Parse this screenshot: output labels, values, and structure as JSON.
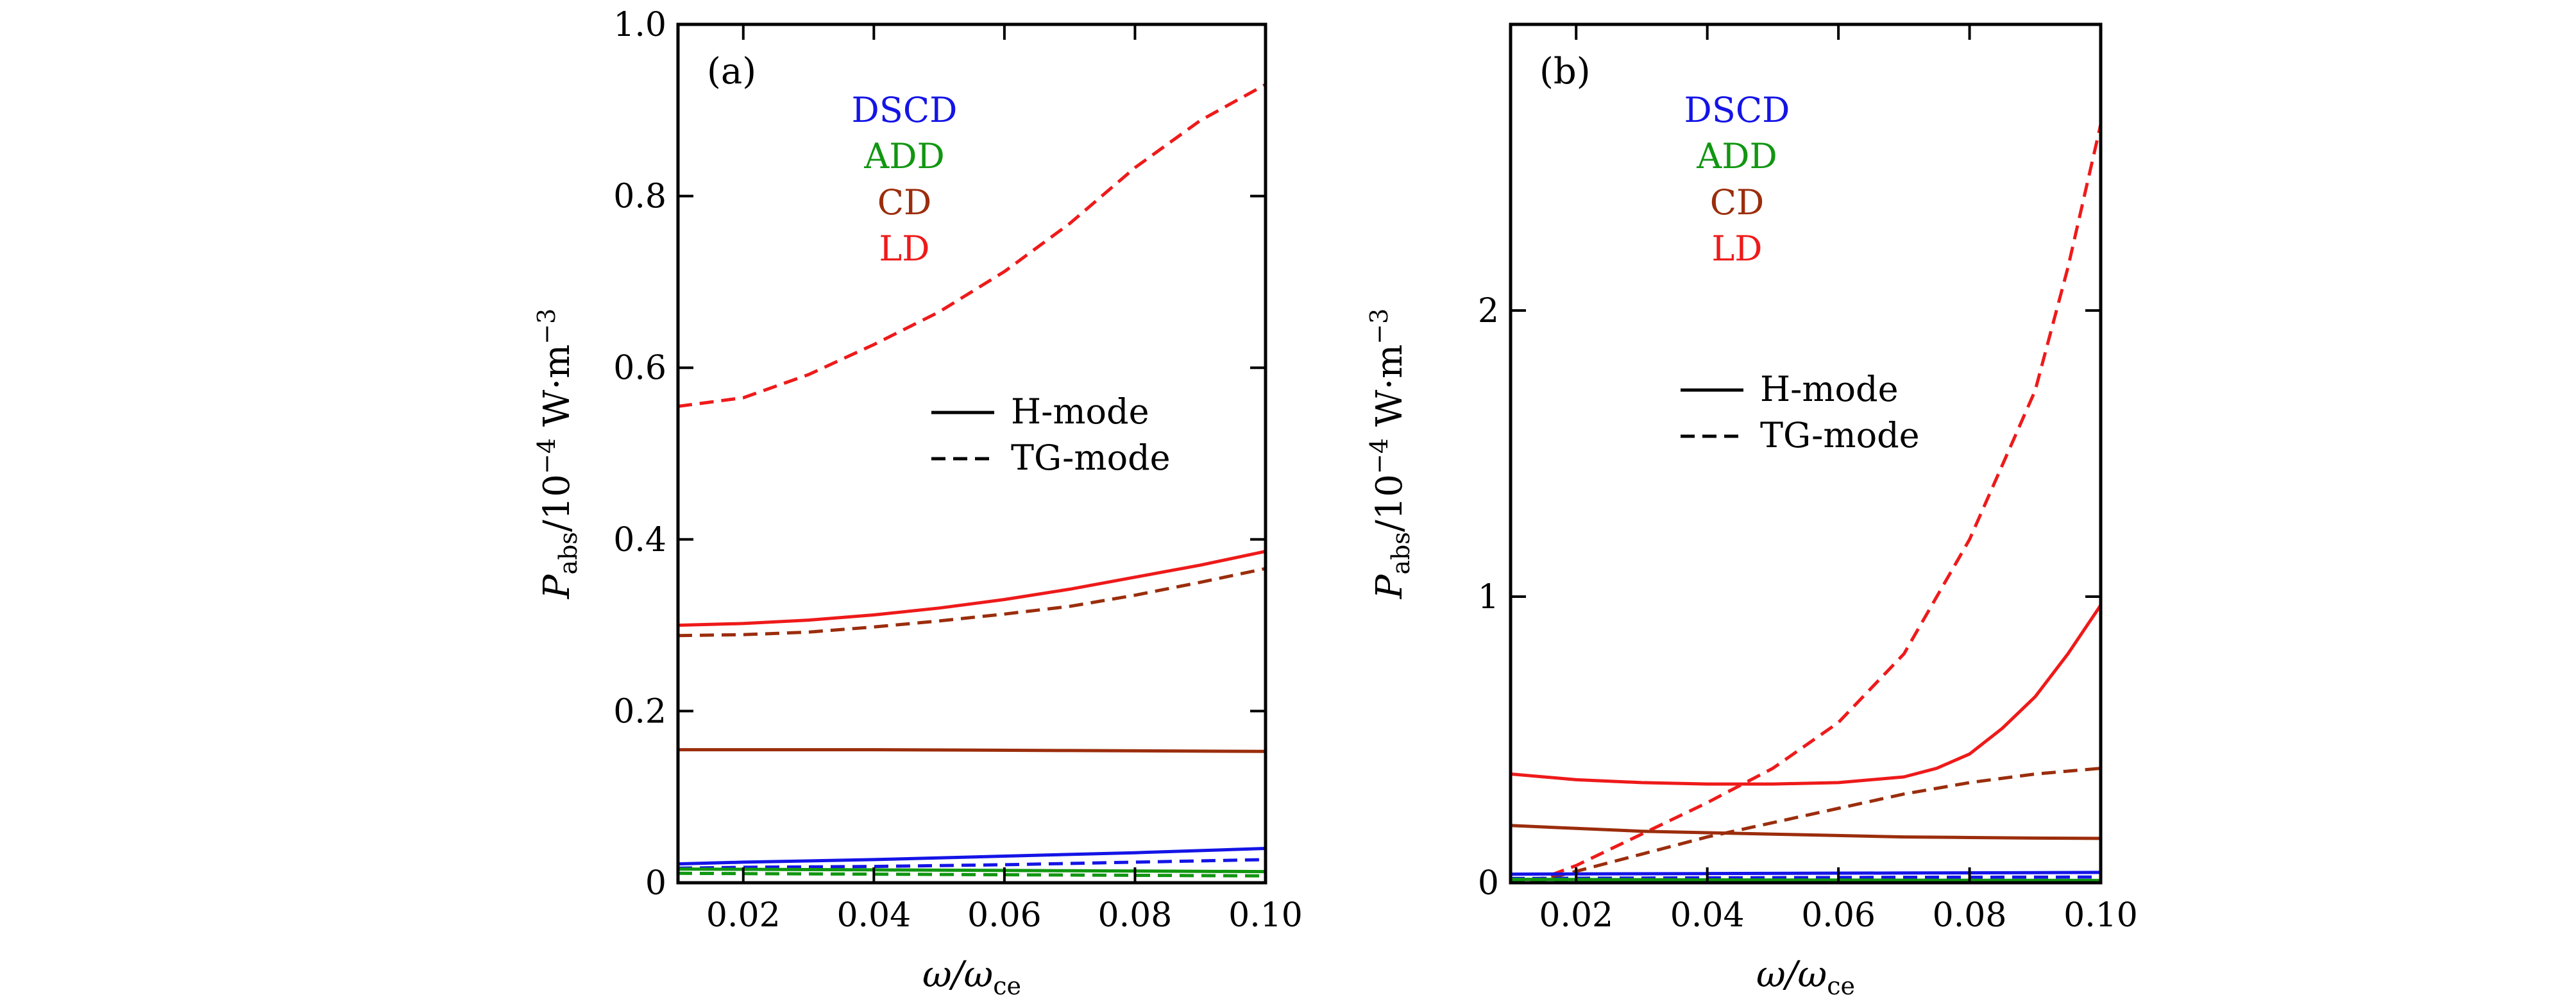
{
  "colors": {
    "DSCD": "#1414e6",
    "ADD": "#119611",
    "CD": "#9b2d0c",
    "LD": "#ee1a1a",
    "axis": "#000000"
  },
  "chart_data": [
    {
      "type": "line",
      "panel_label": "(a)",
      "xlabel": {
        "base": "ω/ω",
        "sub": "ce"
      },
      "ylabel": {
        "base": "P",
        "sub": "abs",
        "rest": "/10",
        "sup": "−4",
        "unit": " W·m",
        "unit_sup": "−3"
      },
      "xlim": [
        0.01,
        0.1
      ],
      "ylim": [
        0,
        1.0
      ],
      "xticks": [
        0.02,
        0.04,
        0.06,
        0.08,
        0.1
      ],
      "xtick_labels": [
        "0.02",
        "0.04",
        "0.06",
        "0.08",
        "0.10"
      ],
      "yticks": [
        0,
        0.2,
        0.4,
        0.6,
        0.8,
        1.0
      ],
      "ytick_labels": [
        "0",
        "0.2",
        "0.4",
        "0.6",
        "0.8",
        "1.0"
      ],
      "color_legend": [
        "DSCD",
        "ADD",
        "CD",
        "LD"
      ],
      "style_legend": [
        {
          "label": "H-mode",
          "style": "solid"
        },
        {
          "label": "TG-mode",
          "style": "dashed"
        }
      ],
      "series": [
        {
          "name": "LD",
          "mode": "TG-mode",
          "style": "dashed",
          "color_key": "LD",
          "x": [
            0.01,
            0.02,
            0.03,
            0.04,
            0.05,
            0.06,
            0.07,
            0.08,
            0.09,
            0.1
          ],
          "y": [
            0.555,
            0.565,
            0.592,
            0.627,
            0.665,
            0.712,
            0.768,
            0.833,
            0.888,
            0.93
          ]
        },
        {
          "name": "LD",
          "mode": "H-mode",
          "style": "solid",
          "color_key": "LD",
          "x": [
            0.01,
            0.02,
            0.03,
            0.04,
            0.05,
            0.06,
            0.07,
            0.08,
            0.09,
            0.1
          ],
          "y": [
            0.3,
            0.302,
            0.306,
            0.312,
            0.32,
            0.33,
            0.342,
            0.356,
            0.37,
            0.386
          ]
        },
        {
          "name": "CD",
          "mode": "TG-mode",
          "style": "dashed",
          "color_key": "CD",
          "x": [
            0.01,
            0.02,
            0.03,
            0.04,
            0.05,
            0.06,
            0.07,
            0.08,
            0.09,
            0.1
          ],
          "y": [
            0.288,
            0.289,
            0.292,
            0.298,
            0.305,
            0.313,
            0.322,
            0.335,
            0.35,
            0.366
          ]
        },
        {
          "name": "CD",
          "mode": "H-mode",
          "style": "solid",
          "color_key": "CD",
          "x": [
            0.01,
            0.04,
            0.07,
            0.1
          ],
          "y": [
            0.155,
            0.155,
            0.154,
            0.153
          ]
        },
        {
          "name": "DSCD",
          "mode": "H-mode",
          "style": "solid",
          "color_key": "DSCD",
          "x": [
            0.01,
            0.02,
            0.04,
            0.06,
            0.08,
            0.1
          ],
          "y": [
            0.022,
            0.024,
            0.027,
            0.031,
            0.035,
            0.04
          ]
        },
        {
          "name": "DSCD",
          "mode": "TG-mode",
          "style": "dashed",
          "color_key": "DSCD",
          "x": [
            0.01,
            0.02,
            0.04,
            0.06,
            0.08,
            0.1
          ],
          "y": [
            0.017,
            0.018,
            0.019,
            0.021,
            0.024,
            0.027
          ]
        },
        {
          "name": "ADD",
          "mode": "H-mode",
          "style": "solid",
          "color_key": "ADD",
          "x": [
            0.01,
            0.04,
            0.07,
            0.1
          ],
          "y": [
            0.016,
            0.015,
            0.014,
            0.013
          ]
        },
        {
          "name": "ADD",
          "mode": "TG-mode",
          "style": "dashed",
          "color_key": "ADD",
          "x": [
            0.01,
            0.04,
            0.07,
            0.1
          ],
          "y": [
            0.011,
            0.01,
            0.009,
            0.008
          ]
        }
      ]
    },
    {
      "type": "line",
      "panel_label": "(b)",
      "xlabel": {
        "base": "ω/ω",
        "sub": "ce"
      },
      "ylabel": {
        "base": "P",
        "sub": "abs",
        "rest": "/10",
        "sup": "−4",
        "unit": " W·m",
        "unit_sup": "−3"
      },
      "xlim": [
        0.01,
        0.1
      ],
      "ylim": [
        0,
        3.0
      ],
      "xticks": [
        0.02,
        0.04,
        0.06,
        0.08,
        0.1
      ],
      "xtick_labels": [
        "0.02",
        "0.04",
        "0.06",
        "0.08",
        "0.10"
      ],
      "yticks": [
        0,
        1,
        2
      ],
      "ytick_labels": [
        "0",
        "1",
        "2"
      ],
      "color_legend": [
        "DSCD",
        "ADD",
        "CD",
        "LD"
      ],
      "style_legend": [
        {
          "label": "H-mode",
          "style": "solid"
        },
        {
          "label": "TG-mode",
          "style": "dashed"
        }
      ],
      "series": [
        {
          "name": "LD",
          "mode": "TG-mode",
          "style": "dashed",
          "color_key": "LD",
          "x": [
            0.013,
            0.02,
            0.03,
            0.04,
            0.05,
            0.06,
            0.07,
            0.08,
            0.09,
            0.095,
            0.1
          ],
          "y": [
            0.0,
            0.06,
            0.17,
            0.28,
            0.4,
            0.56,
            0.8,
            1.2,
            1.72,
            2.15,
            2.65
          ]
        },
        {
          "name": "LD",
          "mode": "H-mode",
          "style": "solid",
          "color_key": "LD",
          "x": [
            0.01,
            0.02,
            0.03,
            0.04,
            0.05,
            0.06,
            0.07,
            0.075,
            0.08,
            0.085,
            0.09,
            0.095,
            0.1
          ],
          "y": [
            0.38,
            0.36,
            0.35,
            0.345,
            0.345,
            0.35,
            0.37,
            0.4,
            0.45,
            0.54,
            0.65,
            0.8,
            0.97
          ]
        },
        {
          "name": "CD",
          "mode": "TG-mode",
          "style": "dashed",
          "color_key": "CD",
          "x": [
            0.013,
            0.02,
            0.03,
            0.04,
            0.05,
            0.06,
            0.07,
            0.08,
            0.09,
            0.1
          ],
          "y": [
            0.0,
            0.04,
            0.1,
            0.16,
            0.21,
            0.26,
            0.31,
            0.35,
            0.38,
            0.4
          ]
        },
        {
          "name": "CD",
          "mode": "H-mode",
          "style": "solid",
          "color_key": "CD",
          "x": [
            0.01,
            0.02,
            0.03,
            0.04,
            0.05,
            0.06,
            0.07,
            0.08,
            0.09,
            0.1
          ],
          "y": [
            0.2,
            0.19,
            0.18,
            0.175,
            0.17,
            0.165,
            0.16,
            0.158,
            0.156,
            0.155
          ]
        },
        {
          "name": "DSCD",
          "mode": "H-mode",
          "style": "solid",
          "color_key": "DSCD",
          "x": [
            0.01,
            0.04,
            0.07,
            0.1
          ],
          "y": [
            0.03,
            0.032,
            0.034,
            0.036
          ]
        },
        {
          "name": "DSCD",
          "mode": "TG-mode",
          "style": "dashed",
          "color_key": "DSCD",
          "x": [
            0.01,
            0.04,
            0.07,
            0.1
          ],
          "y": [
            0.015,
            0.017,
            0.019,
            0.02
          ]
        },
        {
          "name": "ADD",
          "mode": "H-mode",
          "style": "solid",
          "color_key": "ADD",
          "x": [
            0.01,
            0.04,
            0.07,
            0.1
          ],
          "y": [
            0.012,
            0.01,
            0.009,
            0.008
          ]
        },
        {
          "name": "ADD",
          "mode": "TG-mode",
          "style": "dashed",
          "color_key": "ADD",
          "x": [
            0.01,
            0.04,
            0.07,
            0.1
          ],
          "y": [
            0.006,
            0.005,
            0.004,
            0.004
          ]
        }
      ]
    }
  ]
}
